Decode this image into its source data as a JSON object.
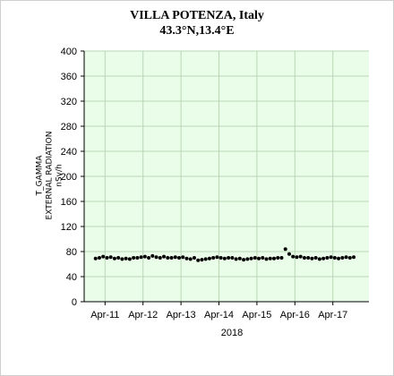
{
  "chart_data": {
    "type": "scatter",
    "title": "VILLA POTENZA, Italy",
    "subtitle": "43.3°N,13.4°E",
    "ylabel_lines": [
      "T_GAMMA",
      "EXTERNAL RADIATION",
      "nSv/h"
    ],
    "xlabel": "2018",
    "ylim": [
      0,
      400
    ],
    "yticks": [
      0,
      40,
      80,
      120,
      160,
      200,
      240,
      280,
      320,
      360,
      400
    ],
    "xticks": [
      "Apr-11",
      "Apr-12",
      "Apr-13",
      "Apr-14",
      "Apr-15",
      "Apr-16",
      "Apr-17"
    ],
    "xlim": [
      2010.7,
      2018.2
    ],
    "grid": true,
    "colors": {
      "plot_bg": "#eafde8",
      "grid": "#b9d6b6",
      "points": "#000000"
    },
    "series": [
      {
        "x": [
          2011.0,
          2011.1,
          2011.2,
          2011.3,
          2011.4,
          2011.5,
          2011.6,
          2011.7,
          2011.8,
          2011.9,
          2012.0,
          2012.1,
          2012.2,
          2012.3,
          2012.4,
          2012.5,
          2012.6,
          2012.7,
          2012.8,
          2012.9,
          2013.0,
          2013.1,
          2013.2,
          2013.3,
          2013.4,
          2013.5,
          2013.6,
          2013.7,
          2013.8,
          2013.9,
          2014.0,
          2014.1,
          2014.2,
          2014.3,
          2014.4,
          2014.5,
          2014.6,
          2014.7,
          2014.8,
          2014.9,
          2015.0,
          2015.1,
          2015.2,
          2015.3,
          2015.4,
          2015.5,
          2015.6,
          2015.7,
          2015.8,
          2015.9,
          2016.0,
          2016.1,
          2016.2,
          2016.3,
          2016.4,
          2016.5,
          2016.6,
          2016.7,
          2016.8,
          2016.9,
          2017.0,
          2017.1,
          2017.2,
          2017.3,
          2017.4,
          2017.5,
          2017.6,
          2017.7,
          2017.8
        ],
        "y": [
          69,
          70,
          72,
          70,
          71,
          69,
          70,
          68,
          69,
          68,
          70,
          70,
          71,
          72,
          70,
          73,
          71,
          70,
          72,
          70,
          70,
          71,
          70,
          71,
          69,
          68,
          70,
          66,
          67,
          68,
          69,
          70,
          71,
          70,
          69,
          70,
          70,
          68,
          69,
          67,
          68,
          69,
          70,
          69,
          70,
          68,
          69,
          69,
          70,
          70,
          84,
          76,
          72,
          71,
          72,
          70,
          70,
          69,
          70,
          68,
          69,
          70,
          71,
          70,
          69,
          70,
          71,
          70,
          71
        ]
      }
    ]
  }
}
